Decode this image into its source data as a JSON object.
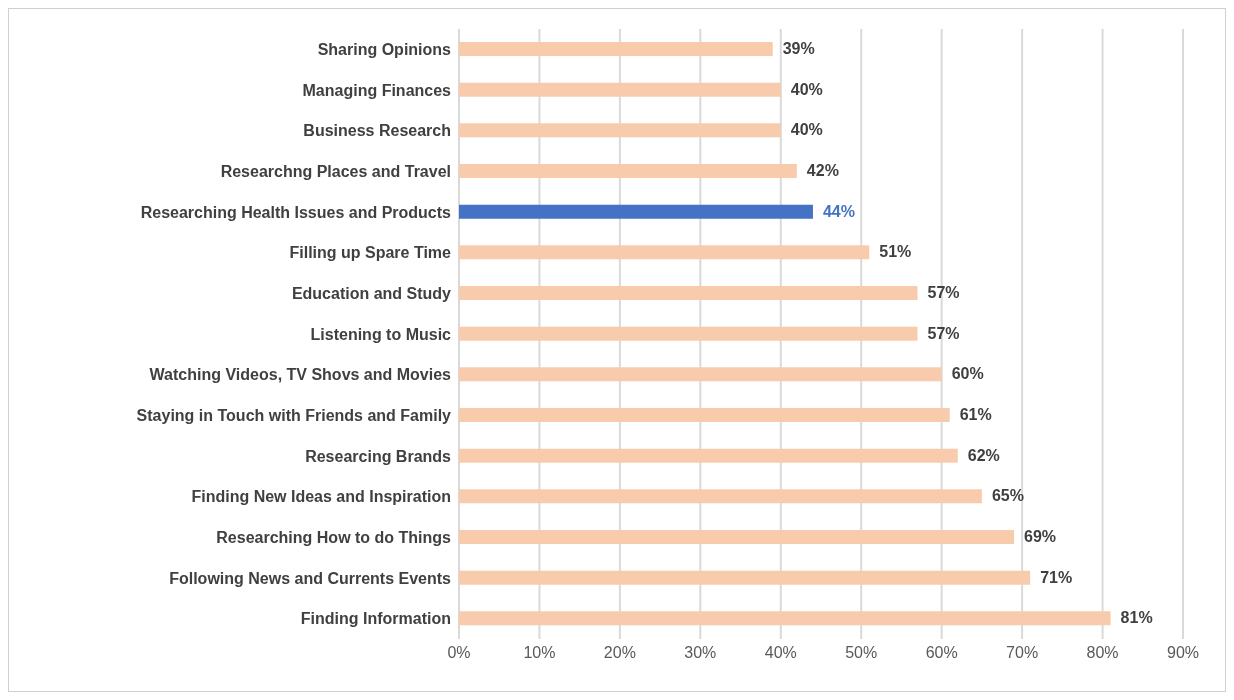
{
  "chart_data": {
    "type": "bar",
    "orientation": "horizontal",
    "categories": [
      "Sharing Opinions",
      "Managing Finances",
      "Business Research",
      "Researchng Places and Travel",
      "Researching Health Issues and Products",
      "Filling up Spare Time",
      "Education and Study",
      "Listening to Music",
      "Watching Videos, TV Shovs and Movies",
      "Staying in Touch with Friends and Family",
      "Researcing Brands",
      "Finding New Ideas and Inspiration",
      "Researching How to do Things",
      "Following News and Currents Events",
      "Finding Information"
    ],
    "values": [
      39,
      40,
      40,
      42,
      44,
      51,
      57,
      57,
      60,
      61,
      62,
      65,
      69,
      71,
      81
    ],
    "colors": [
      "#f8cbad",
      "#f8cbad",
      "#f8cbad",
      "#f8cbad",
      "#4472c4",
      "#f8cbad",
      "#f8cbad",
      "#f8cbad",
      "#f8cbad",
      "#f8cbad",
      "#f8cbad",
      "#f8cbad",
      "#f8cbad",
      "#f8cbad",
      "#f8cbad"
    ],
    "value_labels": [
      "39%",
      "40%",
      "40%",
      "42%",
      "44%",
      "51%",
      "57%",
      "57%",
      "60%",
      "61%",
      "62%",
      "65%",
      "69%",
      "71%",
      "81%"
    ],
    "xlim": [
      0,
      90
    ],
    "xticks": [
      {
        "value": 0,
        "label": "0%"
      },
      {
        "value": 10,
        "label": "10%"
      },
      {
        "value": 20,
        "label": "20%"
      },
      {
        "value": 30,
        "label": "30%"
      },
      {
        "value": 40,
        "label": "40%"
      },
      {
        "value": 50,
        "label": "50%"
      },
      {
        "value": 60,
        "label": "60%"
      },
      {
        "value": 70,
        "label": "70%"
      },
      {
        "value": 80,
        "label": "80%"
      },
      {
        "value": 90,
        "label": "90%"
      }
    ],
    "grid": "x",
    "legend": false
  }
}
